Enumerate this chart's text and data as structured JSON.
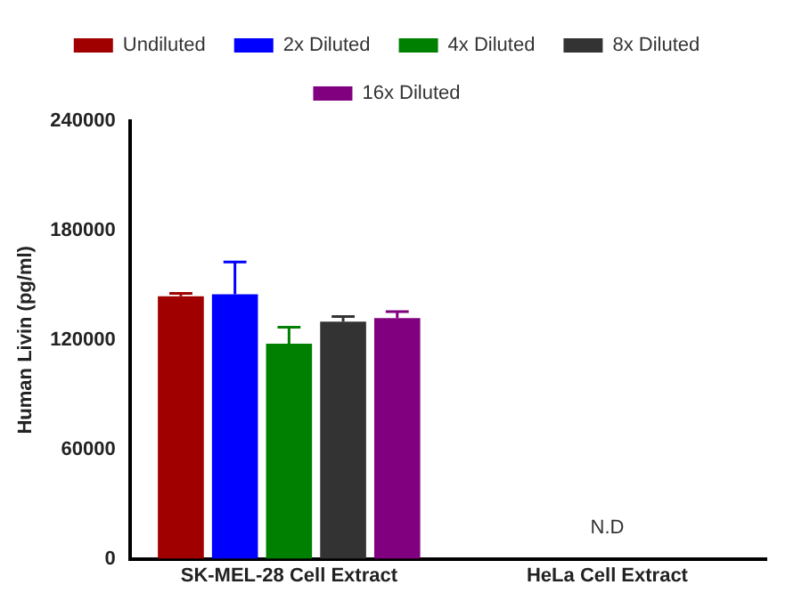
{
  "chart_data": {
    "type": "bar",
    "ylabel": "Human Livin (pg/ml)",
    "categories": [
      "SK-MEL-28 Cell Extract",
      "HeLa Cell Extract"
    ],
    "series": [
      {
        "name": "Undiluted",
        "color": "#a00000",
        "values": [
          144000,
          null
        ],
        "errors": [
          [
            144000,
            145500
          ],
          null
        ]
      },
      {
        "name": "2x Diluted",
        "color": "#0000ff",
        "values": [
          145000,
          null
        ],
        "errors": [
          [
            145000,
            162700
          ],
          null
        ]
      },
      {
        "name": "4x Diluted",
        "color": "#008000",
        "values": [
          118000,
          null
        ],
        "errors": [
          [
            118000,
            127000
          ],
          null
        ]
      },
      {
        "name": "8x Diluted",
        "color": "#333333",
        "values": [
          130000,
          null
        ],
        "errors": [
          [
            130000,
            132800
          ],
          null
        ]
      },
      {
        "name": "16x Diluted",
        "color": "#800080",
        "values": [
          132000,
          null
        ],
        "errors": [
          [
            132000,
            135500
          ],
          null
        ]
      }
    ],
    "ylim": [
      0,
      240000
    ],
    "yticks": [
      0,
      60000,
      120000,
      180000,
      240000
    ],
    "grid": false,
    "legend": "top",
    "annotations": [
      "N.D"
    ]
  }
}
